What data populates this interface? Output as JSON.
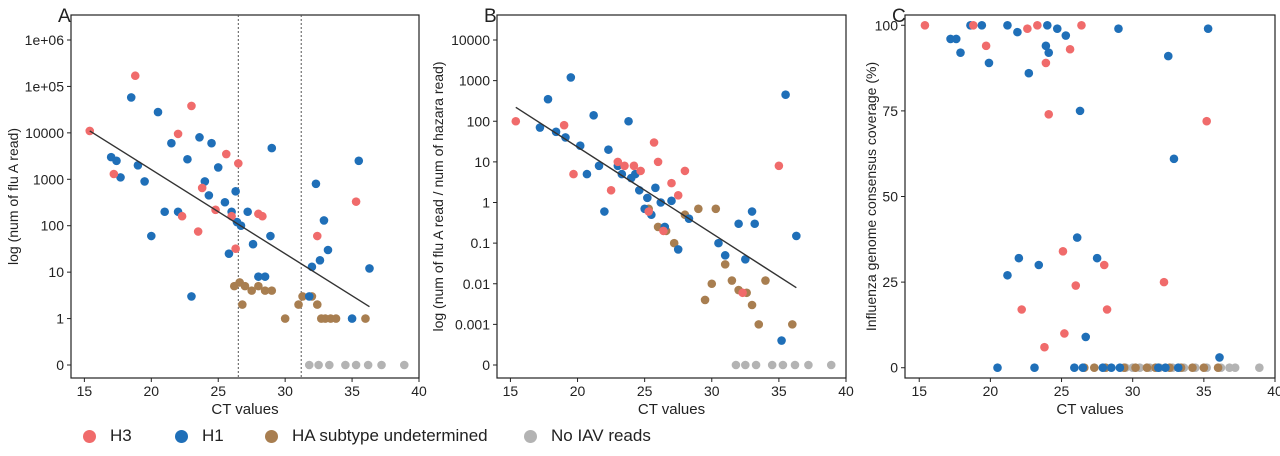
{
  "colors": {
    "H3": "#f06b6b",
    "H1": "#1f6fb8",
    "HA": "#a87e50",
    "NO": "#b3b3b3",
    "line": "#333333"
  },
  "legend": [
    {
      "key": "H3",
      "label": "H3"
    },
    {
      "key": "H1",
      "label": "H1"
    },
    {
      "key": "HA",
      "label": "HA subtype undetermined"
    },
    {
      "key": "NO",
      "label": "No IAV reads"
    }
  ],
  "chart_data": [
    {
      "panel": "A",
      "type": "scatter",
      "xlabel": "CT values",
      "ylabel": "log (num of flu A read)",
      "xlim": [
        14,
        40
      ],
      "xticks": [
        "15",
        "20",
        "25",
        "30",
        "35",
        "40"
      ],
      "yscale": "log (0 plotted at bottom)",
      "yticks": [
        "0",
        "1",
        "10",
        "100",
        "1000",
        "10000",
        "1e+05",
        "1e+06"
      ],
      "vlines": [
        26.5,
        31.2
      ],
      "regression": [
        [
          15.4,
          11000
        ],
        [
          36.3,
          1.8
        ]
      ],
      "series": [
        {
          "key": "H3",
          "points": [
            [
              15.4,
              11000
            ],
            [
              17.2,
              1300
            ],
            [
              18.8,
              170000
            ],
            [
              22.0,
              9500
            ],
            [
              22.3,
              160
            ],
            [
              23.0,
              38000
            ],
            [
              23.5,
              75
            ],
            [
              23.8,
              650
            ],
            [
              24.8,
              220
            ],
            [
              25.6,
              3500
            ],
            [
              26.0,
              160
            ],
            [
              26.3,
              32
            ],
            [
              26.5,
              2200
            ],
            [
              28.0,
              180
            ],
            [
              28.3,
              160
            ],
            [
              32.4,
              60
            ],
            [
              35.3,
              330
            ]
          ]
        },
        {
          "key": "H1",
          "points": [
            [
              17.0,
              3000
            ],
            [
              17.4,
              2500
            ],
            [
              17.7,
              1100
            ],
            [
              18.5,
              58000
            ],
            [
              19.0,
              2000
            ],
            [
              19.5,
              900
            ],
            [
              20.0,
              60
            ],
            [
              20.5,
              28000
            ],
            [
              21.0,
              200
            ],
            [
              21.5,
              6000
            ],
            [
              22.0,
              200
            ],
            [
              22.7,
              2700
            ],
            [
              23.0,
              3
            ],
            [
              23.6,
              8000
            ],
            [
              24.0,
              900
            ],
            [
              24.3,
              450
            ],
            [
              24.5,
              6000
            ],
            [
              25.0,
              1800
            ],
            [
              25.5,
              320
            ],
            [
              25.8,
              25
            ],
            [
              26.0,
              200
            ],
            [
              26.3,
              550
            ],
            [
              26.4,
              120
            ],
            [
              26.7,
              100
            ],
            [
              27.2,
              200
            ],
            [
              27.6,
              40
            ],
            [
              28.0,
              8
            ],
            [
              28.5,
              8
            ],
            [
              28.9,
              60
            ],
            [
              29.0,
              4700
            ],
            [
              32.0,
              13
            ],
            [
              32.3,
              800
            ],
            [
              32.6,
              18
            ],
            [
              32.9,
              130
            ],
            [
              33.2,
              30
            ],
            [
              35.0,
              1
            ],
            [
              35.5,
              2500
            ],
            [
              36.3,
              12
            ],
            [
              31.8,
              3
            ]
          ]
        },
        {
          "key": "HA",
          "points": [
            [
              26.2,
              5
            ],
            [
              26.6,
              6
            ],
            [
              26.8,
              2
            ],
            [
              27.0,
              5
            ],
            [
              27.5,
              4
            ],
            [
              28.0,
              5
            ],
            [
              28.5,
              4
            ],
            [
              29.0,
              4
            ],
            [
              30.0,
              1
            ],
            [
              31.0,
              2
            ],
            [
              31.3,
              3
            ],
            [
              32.0,
              3
            ],
            [
              32.4,
              2
            ],
            [
              32.7,
              1
            ],
            [
              33.0,
              1
            ],
            [
              33.4,
              1
            ],
            [
              33.8,
              1
            ],
            [
              36.0,
              1
            ]
          ]
        },
        {
          "key": "NO",
          "points": [
            [
              31.8,
              0
            ],
            [
              32.5,
              0
            ],
            [
              33.3,
              0
            ],
            [
              34.5,
              0
            ],
            [
              35.3,
              0
            ],
            [
              36.2,
              0
            ],
            [
              37.2,
              0
            ],
            [
              38.9,
              0
            ]
          ]
        }
      ]
    },
    {
      "panel": "B",
      "type": "scatter",
      "xlabel": "CT values",
      "ylabel": "log (num of flu A read / num of hazara read)",
      "xlim": [
        14,
        40
      ],
      "xticks": [
        "15",
        "20",
        "25",
        "30",
        "35",
        "40"
      ],
      "yscale": "log (0 plotted at bottom)",
      "yticks": [
        "0",
        "0.001",
        "0.01",
        "0.1",
        "1",
        "10",
        "100",
        "1000",
        "10000"
      ],
      "regression": [
        [
          15.4,
          220
        ],
        [
          36.3,
          0.008
        ]
      ],
      "series": [
        {
          "key": "H3",
          "points": [
            [
              15.4,
              100
            ],
            [
              19.0,
              80
            ],
            [
              19.7,
              5
            ],
            [
              22.5,
              2
            ],
            [
              23.0,
              10
            ],
            [
              23.5,
              8
            ],
            [
              24.2,
              8
            ],
            [
              24.7,
              6
            ],
            [
              25.3,
              0.6
            ],
            [
              25.7,
              30
            ],
            [
              26.0,
              10
            ],
            [
              26.4,
              0.2
            ],
            [
              27.0,
              3
            ],
            [
              27.5,
              1.5
            ],
            [
              28.0,
              6
            ],
            [
              32.3,
              0.006
            ],
            [
              35.0,
              8
            ]
          ]
        },
        {
          "key": "H1",
          "points": [
            [
              17.2,
              70
            ],
            [
              17.8,
              350
            ],
            [
              18.4,
              55
            ],
            [
              19.1,
              40
            ],
            [
              19.5,
              1200
            ],
            [
              20.2,
              25
            ],
            [
              20.7,
              5
            ],
            [
              21.2,
              140
            ],
            [
              21.6,
              8
            ],
            [
              22.0,
              0.6
            ],
            [
              22.3,
              20
            ],
            [
              23.0,
              8
            ],
            [
              23.3,
              5
            ],
            [
              23.8,
              100
            ],
            [
              24.0,
              4
            ],
            [
              24.3,
              5
            ],
            [
              24.6,
              2
            ],
            [
              25.0,
              0.7
            ],
            [
              25.2,
              1.3
            ],
            [
              25.5,
              0.5
            ],
            [
              25.8,
              2.3
            ],
            [
              26.2,
              1
            ],
            [
              26.5,
              0.25
            ],
            [
              27.0,
              1.1
            ],
            [
              27.5,
              0.07
            ],
            [
              28.3,
              0.4
            ],
            [
              30.5,
              0.1
            ],
            [
              31.0,
              0.05
            ],
            [
              32.0,
              0.3
            ],
            [
              32.5,
              0.04
            ],
            [
              33.0,
              0.6
            ],
            [
              33.2,
              0.3
            ],
            [
              35.5,
              450
            ],
            [
              36.3,
              0.15
            ],
            [
              35.2,
              0.0004
            ]
          ]
        },
        {
          "key": "HA",
          "points": [
            [
              25.3,
              0.7
            ],
            [
              26.0,
              0.25
            ],
            [
              26.6,
              0.2
            ],
            [
              27.2,
              0.1
            ],
            [
              28.0,
              0.5
            ],
            [
              29.0,
              0.7
            ],
            [
              29.5,
              0.004
            ],
            [
              30.0,
              0.01
            ],
            [
              30.3,
              0.7
            ],
            [
              31.0,
              0.03
            ],
            [
              31.5,
              0.012
            ],
            [
              32.0,
              0.007
            ],
            [
              32.6,
              0.006
            ],
            [
              33.0,
              0.003
            ],
            [
              33.5,
              0.001
            ],
            [
              34.0,
              0.012
            ],
            [
              36.0,
              0.001
            ]
          ]
        },
        {
          "key": "NO",
          "points": [
            [
              31.8,
              0
            ],
            [
              32.5,
              0
            ],
            [
              33.3,
              0
            ],
            [
              34.5,
              0
            ],
            [
              35.3,
              0
            ],
            [
              36.2,
              0
            ],
            [
              37.2,
              0
            ],
            [
              38.9,
              0
            ]
          ]
        }
      ]
    },
    {
      "panel": "C",
      "type": "scatter",
      "xlabel": "CT values",
      "ylabel": "Influenza genome consensus coverage (%)",
      "xlim": [
        14,
        40
      ],
      "xticks": [
        "15",
        "20",
        "25",
        "30",
        "35",
        "40"
      ],
      "ylim": [
        -3,
        103
      ],
      "yticks": [
        "0",
        "25",
        "50",
        "75",
        "100"
      ],
      "series": [
        {
          "key": "H3",
          "points": [
            [
              15.4,
              100
            ],
            [
              18.8,
              100
            ],
            [
              19.7,
              94
            ],
            [
              22.2,
              17
            ],
            [
              22.6,
              99
            ],
            [
              23.3,
              100
            ],
            [
              23.8,
              6
            ],
            [
              23.9,
              89
            ],
            [
              24.1,
              74
            ],
            [
              25.1,
              34
            ],
            [
              25.2,
              10
            ],
            [
              25.6,
              93
            ],
            [
              26.0,
              24
            ],
            [
              26.4,
              100
            ],
            [
              28.0,
              30
            ],
            [
              28.2,
              17
            ],
            [
              32.2,
              25
            ],
            [
              35.2,
              72
            ]
          ]
        },
        {
          "key": "H1",
          "points": [
            [
              17.2,
              96
            ],
            [
              17.6,
              96
            ],
            [
              17.9,
              92
            ],
            [
              18.6,
              100
            ],
            [
              19.4,
              100
            ],
            [
              19.9,
              89
            ],
            [
              20.5,
              0
            ],
            [
              21.2,
              100
            ],
            [
              21.2,
              27
            ],
            [
              21.9,
              98
            ],
            [
              22.0,
              32
            ],
            [
              22.7,
              86
            ],
            [
              23.1,
              0
            ],
            [
              23.4,
              30
            ],
            [
              23.9,
              94
            ],
            [
              24.0,
              100
            ],
            [
              24.1,
              92
            ],
            [
              24.7,
              99
            ],
            [
              25.3,
              97
            ],
            [
              25.9,
              0
            ],
            [
              26.1,
              38
            ],
            [
              26.3,
              75
            ],
            [
              26.7,
              9
            ],
            [
              27.5,
              32
            ],
            [
              27.9,
              0
            ],
            [
              29.0,
              99
            ],
            [
              29.1,
              0
            ],
            [
              31.8,
              0
            ],
            [
              32.5,
              91
            ],
            [
              32.9,
              61
            ],
            [
              35.3,
              99
            ],
            [
              36.1,
              3
            ],
            [
              26.5,
              0
            ],
            [
              28.5,
              0
            ],
            [
              32.3,
              0
            ],
            [
              33.2,
              0
            ]
          ]
        },
        {
          "key": "HA",
          "points": [
            [
              26.6,
              0
            ],
            [
              27.3,
              0
            ],
            [
              28.1,
              0
            ],
            [
              29.4,
              0
            ],
            [
              30.2,
              0
            ],
            [
              31.0,
              0
            ],
            [
              31.6,
              0
            ],
            [
              32.6,
              0
            ],
            [
              33.4,
              0
            ],
            [
              34.2,
              0
            ],
            [
              35.0,
              0
            ],
            [
              36.0,
              0
            ]
          ]
        },
        {
          "key": "NO",
          "points": [
            [
              29.5,
              0
            ],
            [
              30.0,
              0
            ],
            [
              30.5,
              0
            ],
            [
              31.2,
              0
            ],
            [
              31.9,
              0
            ],
            [
              32.8,
              0
            ],
            [
              33.6,
              0
            ],
            [
              34.4,
              0
            ],
            [
              35.2,
              0
            ],
            [
              36.2,
              0
            ],
            [
              36.8,
              0
            ],
            [
              37.2,
              0
            ],
            [
              38.9,
              0
            ]
          ]
        }
      ]
    }
  ]
}
